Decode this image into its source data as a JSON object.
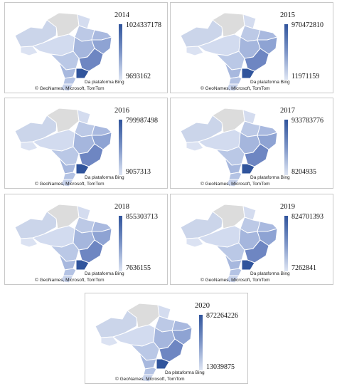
{
  "attribution": {
    "line1": "Da plataforma Bing",
    "line2": "© GeoNames, Microsoft, TomTom"
  },
  "legend_colors": {
    "max": "#30549c",
    "min": "#dfe6f4",
    "no_data": "#dcdcdc",
    "border": "#ffffff"
  },
  "panels": [
    {
      "year": "2014",
      "max": "1024337178",
      "min": "9693162"
    },
    {
      "year": "2015",
      "max": "970472810",
      "min": "11971159"
    },
    {
      "year": "2016",
      "max": "799987498",
      "min": "9057313"
    },
    {
      "year": "2017",
      "max": "933783776",
      "min": "8204935"
    },
    {
      "year": "2018",
      "max": "855303713",
      "min": "7636155"
    },
    {
      "year": "2019",
      "max": "824701393",
      "min": "7262841"
    },
    {
      "year": "2020",
      "max": "872264226",
      "min": "13039875"
    }
  ]
}
